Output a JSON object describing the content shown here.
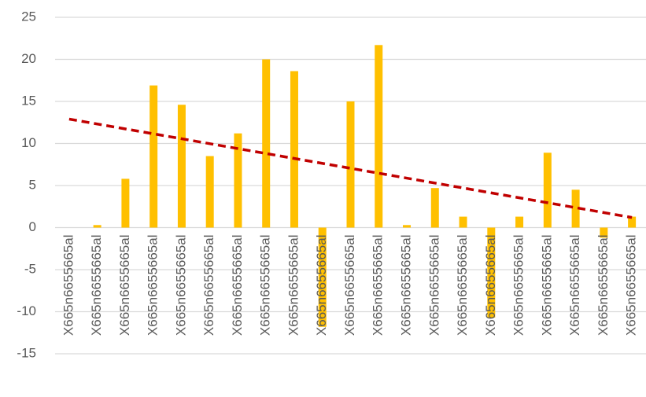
{
  "chart_data": {
    "type": "bar",
    "categories": [
      "X665n6655665al",
      "X665n6655665al",
      "X665n6655665al",
      "X665n6655665al",
      "X665n6655665al",
      "X665n6655665al",
      "X665n6655665al",
      "X665n6655665al",
      "X665n6655665al",
      "X665n6655665al",
      "X665n6655665al",
      "X665n6655665al",
      "X665n6655665al",
      "X665n6655665al",
      "X665n6655665al",
      "X665n6655665al",
      "X665n6655665al",
      "X665n6655665al",
      "X665n6655665al",
      "X665n6655665al",
      "X665n6655665al"
    ],
    "values": [
      0,
      0.3,
      5.8,
      16.9,
      14.6,
      8.5,
      11.2,
      20,
      18.6,
      -11.8,
      15,
      21.7,
      0.3,
      4.7,
      1.3,
      -10.7,
      1.3,
      8.9,
      4.5,
      -1.2,
      1.3
    ],
    "color": "#ffc000",
    "ylim": [
      -15,
      25
    ],
    "yticks": [
      -15,
      -10,
      -5,
      0,
      5,
      10,
      15,
      20,
      25
    ],
    "grid": true,
    "trendline": {
      "start": 12.9,
      "end": 1.2,
      "color": "#c00000"
    }
  }
}
